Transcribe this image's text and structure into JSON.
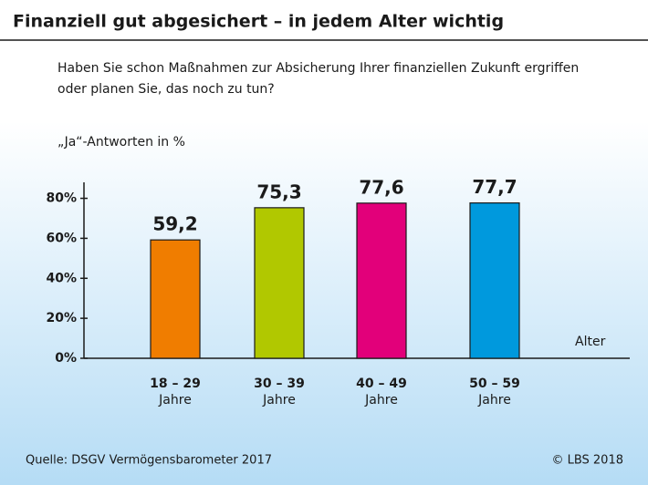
{
  "chart_data": {
    "type": "bar",
    "title": "Finanziell gut abgesichert – in jedem Alter wichtig",
    "subtitle": [
      "Haben Sie schon Maßnahmen zur Absicherung Ihrer finanziellen Zukunft ergriffen",
      "oder planen Sie, das noch zu tun?"
    ],
    "y_label": "„Ja“-Antworten in %",
    "x_label": "Alter",
    "categories": [
      [
        "18 – 29",
        "Jahre"
      ],
      [
        "30 – 39",
        "Jahre"
      ],
      [
        "40 – 49",
        "Jahre"
      ],
      [
        "50 – 59",
        "Jahre"
      ]
    ],
    "values": [
      59.2,
      75.3,
      77.6,
      77.7
    ],
    "value_labels": [
      "59,2",
      "75,3",
      "77,6",
      "77,7"
    ],
    "colors": [
      "#f07d00",
      "#b1c800",
      "#e2007a",
      "#0099dd"
    ],
    "ylim": [
      0,
      88
    ],
    "yticks": [
      {
        "value": 0,
        "label": "0%"
      },
      {
        "value": 20,
        "label": "20%"
      },
      {
        "value": 40,
        "label": "40%"
      },
      {
        "value": 60,
        "label": "60%"
      },
      {
        "value": 80,
        "label": "80%"
      }
    ],
    "source": "Quelle: DSGV Vermögensbarometer 2017",
    "copyright": "© LBS 2018"
  }
}
